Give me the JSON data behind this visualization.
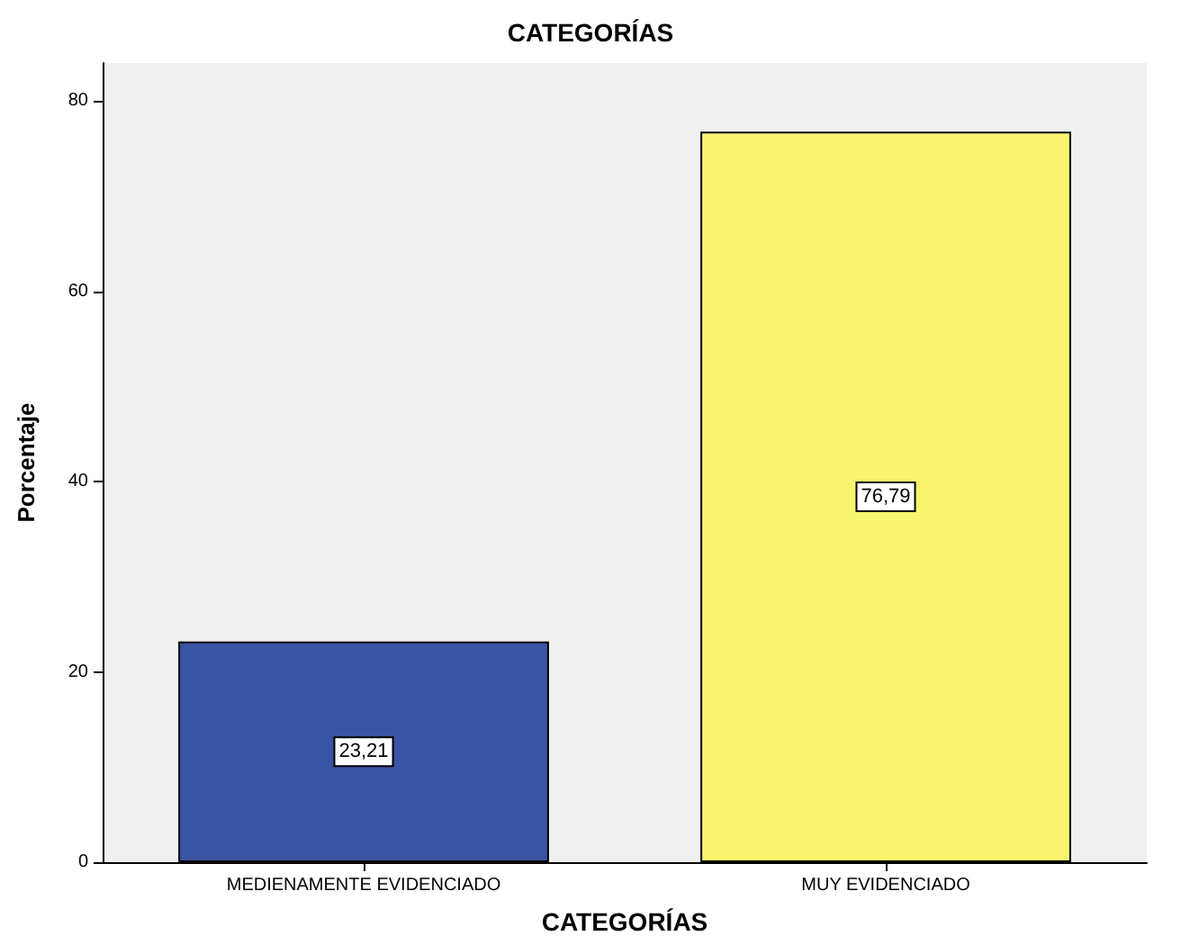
{
  "chart_data": {
    "type": "bar",
    "title": "CATEGORÍAS",
    "xlabel": "CATEGORÍAS",
    "ylabel": "Porcentaje",
    "categories": [
      "MEDIENAMENTE EVIDENCIADO",
      "MUY EVIDENCIADO"
    ],
    "values": [
      23.21,
      76.79
    ],
    "colors": [
      "#3a53a4",
      "#f8f46e"
    ],
    "value_labels": [
      "23,21",
      "76,79"
    ],
    "ylim": [
      0,
      84
    ],
    "yticks": [
      0,
      20,
      40,
      60,
      80
    ],
    "grid": false
  }
}
